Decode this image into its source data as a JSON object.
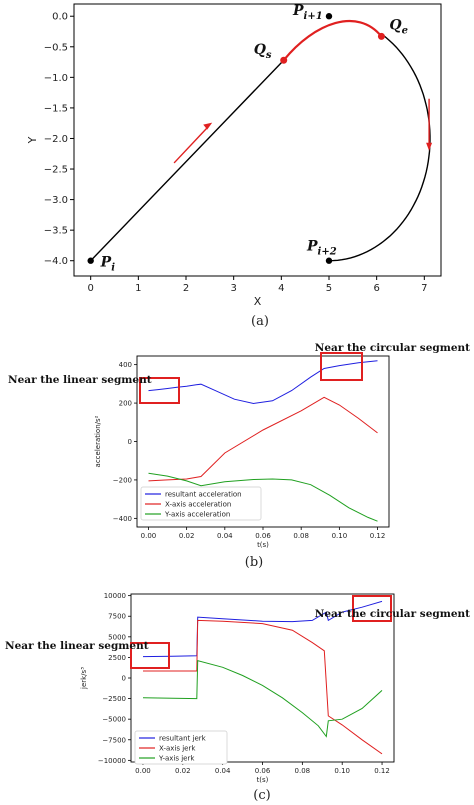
{
  "chart_data": [
    {
      "type": "line",
      "panel": "(a)",
      "xlabel": "X",
      "ylabel": "Y",
      "xlim": [
        -0.35,
        7.35
      ],
      "ylim": [
        -4.25,
        0.2
      ],
      "xticks": [
        0,
        1,
        2,
        3,
        4,
        5,
        6,
        7
      ],
      "yticks": [
        0.0,
        -0.5,
        -1.0,
        -1.5,
        -2.0,
        -2.5,
        -3.0,
        -3.5,
        -4.0
      ],
      "ytick_labels": [
        "0.0",
        "−0.5",
        "−1.0",
        "−1.5",
        "−2.0",
        "−2.5",
        "−3.0",
        "−3.5",
        "−4.0"
      ],
      "grid": false,
      "path_color": "#000000",
      "highlight_color": "#e02020",
      "points": [
        {
          "label": "P",
          "sub": "i",
          "x": 0,
          "y": -4.0
        },
        {
          "label": "P",
          "sub": "i+1",
          "x": 5.0,
          "y": 0.0
        },
        {
          "label": "P",
          "sub": "i+2",
          "x": 5.0,
          "y": -4.0
        },
        {
          "label": "Q",
          "sub": "s",
          "x": 4.05,
          "y": -0.72
        },
        {
          "label": "Q",
          "sub": "e",
          "x": 6.1,
          "y": -0.33
        }
      ],
      "arrows": [
        "along-line-up-right",
        "along-arc-down"
      ]
    },
    {
      "type": "line",
      "panel": "(b)",
      "xlabel": "t(s)",
      "ylabel": "acceleration/s²",
      "xlim": [
        -0.006,
        0.126
      ],
      "ylim": [
        -445,
        445
      ],
      "xticks": [
        0.0,
        0.02,
        0.04,
        0.06,
        0.08,
        0.1,
        0.12
      ],
      "xtick_labels": [
        "0.00",
        "0.02",
        "0.04",
        "0.06",
        "0.08",
        "0.10",
        "0.12"
      ],
      "yticks": [
        -400,
        -200,
        0,
        200,
        400
      ],
      "ytick_labels": [
        "−400",
        "−200",
        "0",
        "200",
        "400"
      ],
      "legend": "lower-left",
      "series": [
        {
          "name": "resultant acceleration",
          "color": "#1f1fe0",
          "x": [
            0.0,
            0.005,
            0.01,
            0.015,
            0.02,
            0.025,
            0.0275,
            0.035,
            0.045,
            0.055,
            0.065,
            0.075,
            0.085,
            0.092,
            0.1,
            0.11,
            0.12
          ],
          "y": [
            265,
            270,
            276,
            282,
            288,
            295,
            298,
            265,
            220,
            198,
            212,
            265,
            335,
            380,
            395,
            410,
            420
          ]
        },
        {
          "name": "X-axis acceleration",
          "color": "#e02020",
          "x": [
            0.0,
            0.01,
            0.02,
            0.0275,
            0.04,
            0.06,
            0.08,
            0.092,
            0.1,
            0.11,
            0.12
          ],
          "y": [
            -205,
            -200,
            -195,
            -182,
            -60,
            60,
            160,
            230,
            190,
            120,
            45
          ]
        },
        {
          "name": "Y-axis acceleration",
          "color": "#20a020",
          "x": [
            0.0,
            0.01,
            0.02,
            0.0275,
            0.04,
            0.055,
            0.065,
            0.075,
            0.085,
            0.095,
            0.105,
            0.115,
            0.12
          ],
          "y": [
            -165,
            -180,
            -205,
            -230,
            -210,
            -198,
            -195,
            -200,
            -225,
            -280,
            -345,
            -395,
            -415
          ]
        }
      ],
      "annotations": [
        "Near the linear segment",
        "Near the circular segment"
      ]
    },
    {
      "type": "line",
      "panel": "(c)",
      "xlabel": "t(s)",
      "ylabel": "jerk/s³",
      "xlim": [
        -0.006,
        0.126
      ],
      "ylim": [
        -10200,
        10200
      ],
      "xticks": [
        0.0,
        0.02,
        0.04,
        0.06,
        0.08,
        0.1,
        0.12
      ],
      "xtick_labels": [
        "0.00",
        "0.02",
        "0.04",
        "0.06",
        "0.08",
        "0.10",
        "0.12"
      ],
      "yticks": [
        -10000,
        -7500,
        -5000,
        -2500,
        0,
        2500,
        5000,
        7500,
        10000
      ],
      "ytick_labels": [
        "−10000",
        "−7500",
        "−5000",
        "−2500",
        "0",
        "2500",
        "5000",
        "7500",
        "10000"
      ],
      "legend": "lower-left",
      "series": [
        {
          "name": "resultant jerk",
          "color": "#1f1fe0",
          "x": [
            0.0,
            0.015,
            0.027,
            0.0275,
            0.04,
            0.06,
            0.075,
            0.085,
            0.092,
            0.093,
            0.1,
            0.11,
            0.12
          ],
          "y": [
            2600,
            2650,
            2700,
            7400,
            7200,
            6900,
            6850,
            7000,
            8000,
            7000,
            8000,
            8600,
            9300
          ]
        },
        {
          "name": "X-axis jerk",
          "color": "#e02020",
          "x": [
            0.0,
            0.015,
            0.027,
            0.0275,
            0.04,
            0.06,
            0.075,
            0.085,
            0.091,
            0.093,
            0.1,
            0.11,
            0.12
          ],
          "y": [
            850,
            850,
            850,
            7000,
            6900,
            6600,
            5800,
            4300,
            3300,
            -4600,
            -5700,
            -7500,
            -9200
          ]
        },
        {
          "name": "Y-axis jerk",
          "color": "#20a020",
          "x": [
            0.0,
            0.015,
            0.027,
            0.0275,
            0.04,
            0.05,
            0.06,
            0.07,
            0.08,
            0.088,
            0.092,
            0.093,
            0.1,
            0.11,
            0.12
          ],
          "y": [
            -2400,
            -2450,
            -2500,
            2100,
            1300,
            300,
            -900,
            -2400,
            -4200,
            -5800,
            -7100,
            -5200,
            -5000,
            -3700,
            -1500
          ]
        }
      ],
      "annotations": [
        "Near the linear segment",
        "Near the circular segment"
      ]
    }
  ],
  "captions": {
    "a": "(a)",
    "b": "(b)",
    "c": "(c)"
  }
}
